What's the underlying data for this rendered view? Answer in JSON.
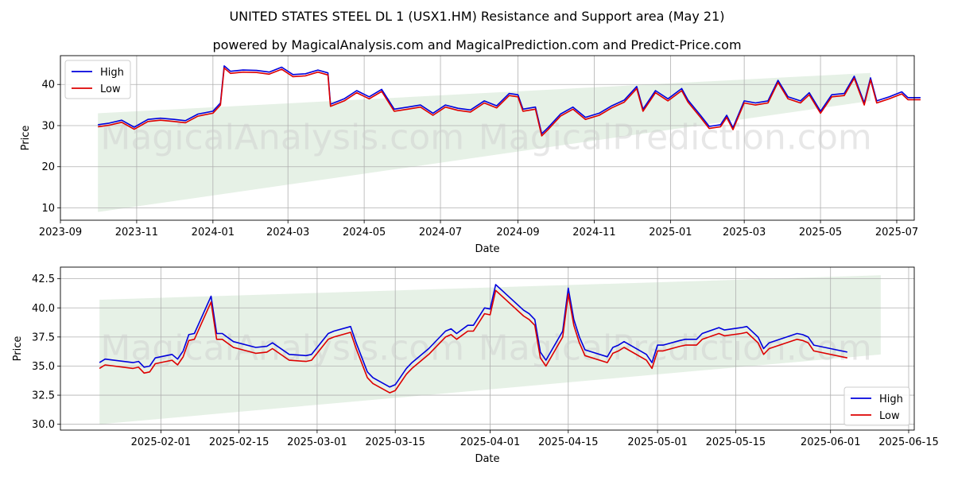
{
  "title_line1": "UNITED STATES STEEL  DL 1 (USX1.HM) Resistance and Support area (May 21)",
  "title_line2": "powered by MagicalAnalysis.com and MagicalPrediction.com and Predict-Price.com",
  "watermarks": [
    "MagicalAnalysis.com",
    "MagicalPrediction.com"
  ],
  "colors": {
    "high": "#0000dd",
    "low": "#dd0000",
    "band": "#2e8b2e"
  },
  "chart_data": [
    {
      "type": "line",
      "xlabel": "Date",
      "ylabel": "Price",
      "x_range": [
        "2023-09-01",
        "2025-07-15"
      ],
      "ylim": [
        7,
        47
      ],
      "x_ticks": [
        "2023-09",
        "2023-11",
        "2024-01",
        "2024-03",
        "2024-05",
        "2024-07",
        "2024-09",
        "2024-11",
        "2025-01",
        "2025-03",
        "2025-05",
        "2025-07"
      ],
      "y_ticks": [
        10,
        20,
        30,
        40
      ],
      "grid": true,
      "legend": "top-left",
      "band": {
        "x_start": "2023-10-01",
        "x_end": "2025-06-10",
        "upper": [
          33,
          42.8
        ],
        "lower": [
          9,
          36
        ]
      },
      "series": [
        {
          "name": "High",
          "points": [
            [
              "2023-10-01",
              30.2
            ],
            [
              "2023-10-10",
              30.6
            ],
            [
              "2023-10-20",
              31.3
            ],
            [
              "2023-10-30",
              29.6
            ],
            [
              "2023-11-10",
              31.5
            ],
            [
              "2023-11-20",
              31.8
            ],
            [
              "2023-12-01",
              31.5
            ],
            [
              "2023-12-10",
              31.2
            ],
            [
              "2023-12-20",
              32.8
            ],
            [
              "2024-01-01",
              33.5
            ],
            [
              "2024-01-07",
              35.5
            ],
            [
              "2024-01-10",
              44.5
            ],
            [
              "2024-01-15",
              43.2
            ],
            [
              "2024-01-25",
              43.5
            ],
            [
              "2024-02-05",
              43.4
            ],
            [
              "2024-02-15",
              43.0
            ],
            [
              "2024-02-25",
              44.2
            ],
            [
              "2024-03-05",
              42.4
            ],
            [
              "2024-03-15",
              42.6
            ],
            [
              "2024-03-25",
              43.5
            ],
            [
              "2024-04-02",
              42.8
            ],
            [
              "2024-04-04",
              35.2
            ],
            [
              "2024-04-15",
              36.5
            ],
            [
              "2024-04-25",
              38.5
            ],
            [
              "2024-05-05",
              37.0
            ],
            [
              "2024-05-15",
              38.8
            ],
            [
              "2024-05-25",
              34.0
            ],
            [
              "2024-06-05",
              34.5
            ],
            [
              "2024-06-15",
              35.0
            ],
            [
              "2024-06-25",
              33.0
            ],
            [
              "2024-07-05",
              35.0
            ],
            [
              "2024-07-15",
              34.2
            ],
            [
              "2024-07-25",
              33.8
            ],
            [
              "2024-08-05",
              36.0
            ],
            [
              "2024-08-15",
              34.8
            ],
            [
              "2024-08-25",
              37.8
            ],
            [
              "2024-09-01",
              37.5
            ],
            [
              "2024-09-05",
              34.0
            ],
            [
              "2024-09-15",
              34.5
            ],
            [
              "2024-09-20",
              28.0
            ],
            [
              "2024-09-25",
              29.5
            ],
            [
              "2024-10-05",
              32.8
            ],
            [
              "2024-10-15",
              34.5
            ],
            [
              "2024-10-25",
              32.0
            ],
            [
              "2024-11-05",
              33.0
            ],
            [
              "2024-11-15",
              34.8
            ],
            [
              "2024-11-25",
              36.2
            ],
            [
              "2024-12-05",
              39.5
            ],
            [
              "2024-12-10",
              34.0
            ],
            [
              "2024-12-20",
              38.5
            ],
            [
              "2024-12-30",
              36.5
            ],
            [
              "2025-01-10",
              39.0
            ],
            [
              "2025-01-15",
              36.2
            ],
            [
              "2025-01-25",
              32.5
            ],
            [
              "2025-02-01",
              29.8
            ],
            [
              "2025-02-10",
              30.2
            ],
            [
              "2025-02-15",
              32.5
            ],
            [
              "2025-02-20",
              29.5
            ],
            [
              "2025-03-01",
              36.0
            ],
            [
              "2025-03-10",
              35.5
            ],
            [
              "2025-03-20",
              36.0
            ],
            [
              "2025-03-28",
              41.0
            ],
            [
              "2025-04-05",
              37.0
            ],
            [
              "2025-04-15",
              36.0
            ],
            [
              "2025-04-22",
              38.0
            ],
            [
              "2025-05-01",
              33.5
            ],
            [
              "2025-05-10",
              37.5
            ],
            [
              "2025-05-20",
              37.8
            ],
            [
              "2025-05-28",
              42.0
            ],
            [
              "2025-06-05",
              35.5
            ],
            [
              "2025-06-10",
              41.6
            ],
            [
              "2025-06-15",
              36.0
            ],
            [
              "2025-06-25",
              37.0
            ],
            [
              "2025-07-05",
              38.2
            ],
            [
              "2025-07-10",
              36.8
            ],
            [
              "2025-07-20",
              36.8
            ]
          ]
        },
        {
          "name": "Low",
          "points": []
        }
      ]
    },
    {
      "type": "line",
      "xlabel": "Date",
      "ylabel": "Price",
      "x_range": [
        "2025-01-14",
        "2025-06-16"
      ],
      "ylim": [
        29.5,
        43.5
      ],
      "x_ticks": [
        "2025-02-01",
        "2025-02-15",
        "2025-03-01",
        "2025-03-15",
        "2025-04-01",
        "2025-04-15",
        "2025-05-01",
        "2025-05-15",
        "2025-06-01",
        "2025-06-15"
      ],
      "y_ticks": [
        30.0,
        32.5,
        35.0,
        37.5,
        40.0,
        42.5
      ],
      "grid": true,
      "legend": "bottom-right",
      "band": {
        "x_start": "2025-01-21",
        "x_end": "2025-06-10",
        "upper": [
          40.7,
          42.8
        ],
        "lower": [
          30.0,
          36.0
        ]
      },
      "series": [
        {
          "name": "High",
          "points": [
            [
              "2025-01-21",
              35.3
            ],
            [
              "2025-01-22",
              35.6
            ],
            [
              "2025-01-27",
              35.3
            ],
            [
              "2025-01-28",
              35.4
            ],
            [
              "2025-01-29",
              34.9
            ],
            [
              "2025-01-30",
              35.0
            ],
            [
              "2025-01-31",
              35.7
            ],
            [
              "2025-02-03",
              36.0
            ],
            [
              "2025-02-04",
              35.6
            ],
            [
              "2025-02-05",
              36.3
            ],
            [
              "2025-02-06",
              37.7
            ],
            [
              "2025-02-07",
              37.8
            ],
            [
              "2025-02-10",
              41.0
            ],
            [
              "2025-02-11",
              37.8
            ],
            [
              "2025-02-12",
              37.8
            ],
            [
              "2025-02-14",
              37.1
            ],
            [
              "2025-02-18",
              36.6
            ],
            [
              "2025-02-20",
              36.7
            ],
            [
              "2025-02-21",
              37.0
            ],
            [
              "2025-02-24",
              36.0
            ],
            [
              "2025-02-27",
              35.9
            ],
            [
              "2025-02-28",
              36.0
            ],
            [
              "2025-03-03",
              37.8
            ],
            [
              "2025-03-04",
              38.0
            ],
            [
              "2025-03-07",
              38.4
            ],
            [
              "2025-03-08",
              37.0
            ],
            [
              "2025-03-10",
              34.5
            ],
            [
              "2025-03-11",
              34.0
            ],
            [
              "2025-03-14",
              33.2
            ],
            [
              "2025-03-15",
              33.4
            ],
            [
              "2025-03-17",
              34.8
            ],
            [
              "2025-03-18",
              35.3
            ],
            [
              "2025-03-21",
              36.5
            ],
            [
              "2025-03-24",
              38.0
            ],
            [
              "2025-03-25",
              38.2
            ],
            [
              "2025-03-26",
              37.8
            ],
            [
              "2025-03-28",
              38.5
            ],
            [
              "2025-03-29",
              38.5
            ],
            [
              "2025-03-31",
              40.0
            ],
            [
              "2025-04-01",
              39.9
            ],
            [
              "2025-04-02",
              42.0
            ],
            [
              "2025-04-07",
              39.8
            ],
            [
              "2025-04-08",
              39.5
            ],
            [
              "2025-04-09",
              39.0
            ],
            [
              "2025-04-10",
              36.2
            ],
            [
              "2025-04-11",
              35.5
            ],
            [
              "2025-04-14",
              38.0
            ],
            [
              "2025-04-15",
              41.7
            ],
            [
              "2025-04-16",
              39.0
            ],
            [
              "2025-04-17",
              37.5
            ],
            [
              "2025-04-18",
              36.4
            ],
            [
              "2025-04-22",
              35.8
            ],
            [
              "2025-04-23",
              36.6
            ],
            [
              "2025-04-24",
              36.8
            ],
            [
              "2025-04-25",
              37.1
            ],
            [
              "2025-04-29",
              36.0
            ],
            [
              "2025-04-30",
              35.3
            ],
            [
              "2025-05-01",
              36.8
            ],
            [
              "2025-05-02",
              36.8
            ],
            [
              "2025-05-05",
              37.2
            ],
            [
              "2025-05-06",
              37.3
            ],
            [
              "2025-05-07",
              37.3
            ],
            [
              "2025-05-08",
              37.3
            ],
            [
              "2025-05-09",
              37.8
            ],
            [
              "2025-05-12",
              38.3
            ],
            [
              "2025-05-13",
              38.1
            ],
            [
              "2025-05-16",
              38.3
            ],
            [
              "2025-05-17",
              38.4
            ],
            [
              "2025-05-19",
              37.5
            ],
            [
              "2025-05-20",
              36.5
            ],
            [
              "2025-05-21",
              37.0
            ],
            [
              "2025-05-26",
              37.8
            ],
            [
              "2025-05-27",
              37.7
            ],
            [
              "2025-05-28",
              37.5
            ],
            [
              "2025-05-29",
              36.8
            ],
            [
              "2025-06-04",
              36.2
            ]
          ]
        },
        {
          "name": "Low",
          "points": []
        }
      ]
    }
  ]
}
